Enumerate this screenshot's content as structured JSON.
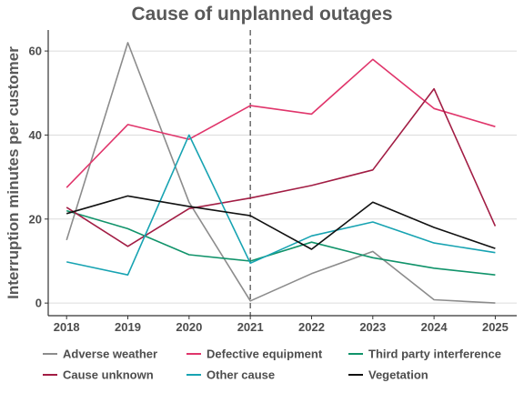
{
  "chart_data": {
    "type": "line",
    "title": "Cause of unplanned outages",
    "xlabel": "",
    "ylabel": "Interruption minutes per customer",
    "x": [
      "2018",
      "2019",
      "2020",
      "2021",
      "2022",
      "2023",
      "2024",
      "2025"
    ],
    "xlim": [
      2017.7,
      2025.35
    ],
    "ylim": [
      -3,
      65
    ],
    "yticks": [
      0,
      20,
      40,
      60
    ],
    "grid": true,
    "vline": {
      "x": "2021",
      "style": "dashed"
    },
    "legend_position": "bottom",
    "series": [
      {
        "name": "Adverse weather",
        "color": "#8c8c8c",
        "values": [
          15,
          62,
          24,
          0.5,
          7,
          12.3,
          0.8,
          0
        ]
      },
      {
        "name": "Defective equipment",
        "color": "#e0356b",
        "values": [
          27.5,
          42.5,
          39,
          47,
          45,
          58,
          46.3,
          42
        ]
      },
      {
        "name": "Third party interference",
        "color": "#10936a",
        "values": [
          22,
          17.7,
          11.5,
          10,
          14.5,
          10.8,
          8.3,
          6.7
        ]
      },
      {
        "name": "Cause unknown",
        "color": "#a21d44",
        "values": [
          22.8,
          13.5,
          22.5,
          25,
          28,
          31.7,
          51,
          18.3
        ]
      },
      {
        "name": "Other cause",
        "color": "#17a3b2",
        "values": [
          9.8,
          6.7,
          40,
          9.5,
          16,
          19.3,
          14.3,
          12
        ]
      },
      {
        "name": "Vegetation",
        "color": "#111111",
        "values": [
          21.3,
          25.5,
          23,
          20.8,
          12.8,
          24,
          18,
          13
        ]
      }
    ]
  }
}
